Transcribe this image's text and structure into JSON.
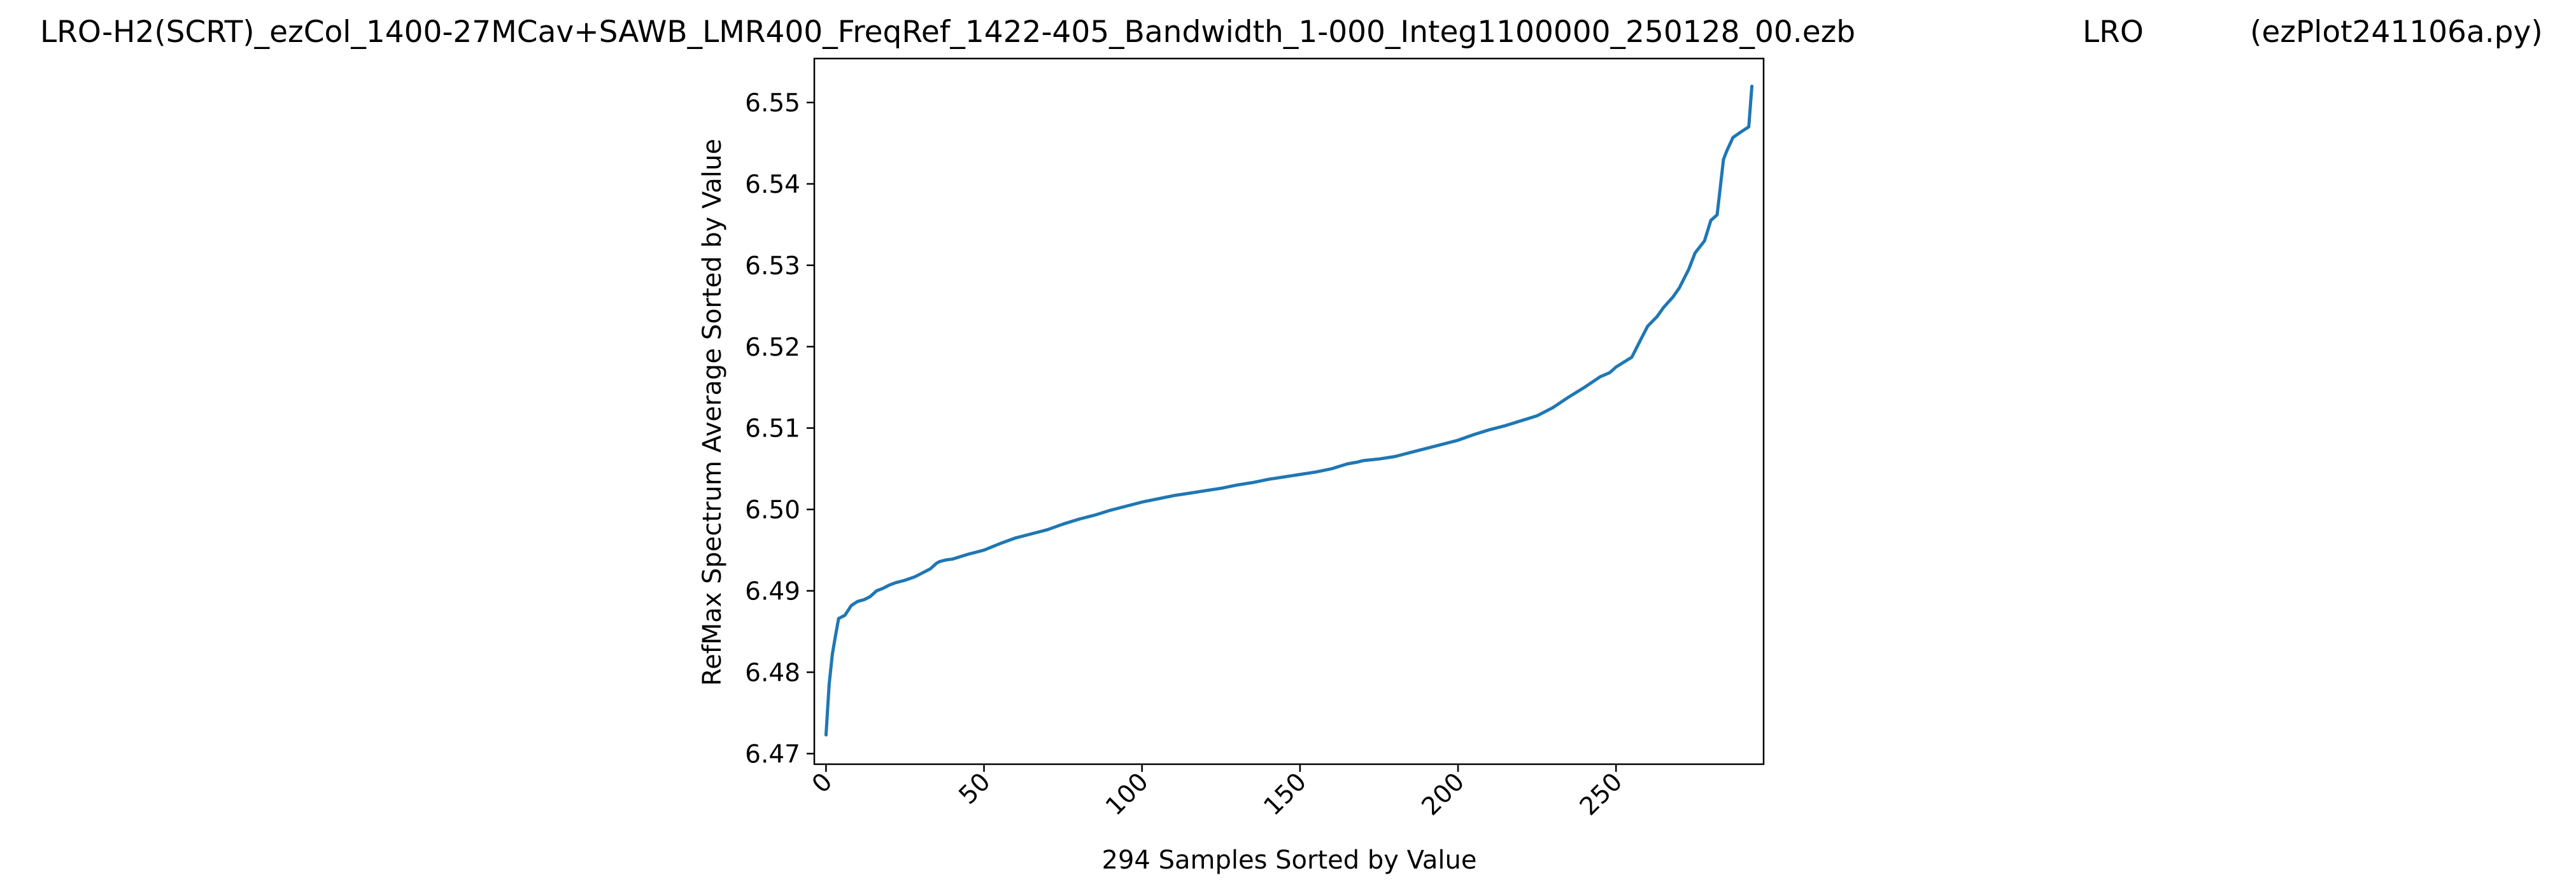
{
  "header": {
    "filename": "LRO-H2(SCRT)_ezCol_1400-27MCav+SAWB_LMR400_FreqRef_1422-405_Bandwidth_1-000_Integ1100000_250128_00.ezb",
    "site": "LRO",
    "program": "(ezPlot241106a.py)"
  },
  "colors": {
    "line": "#1f77b4",
    "axes": "#000000",
    "background": "#ffffff"
  },
  "chart_data": {
    "type": "line",
    "title": "",
    "xlabel": "294 Samples Sorted by Value",
    "ylabel": "RefMax Spectrum Average Sorted by Value",
    "xlim": [
      -3.7,
      296.7
    ],
    "ylim": [
      6.4687,
      6.5554
    ],
    "x_ticks": [
      0,
      50,
      100,
      150,
      200,
      250
    ],
    "x_tick_labels": [
      "0",
      "50",
      "100",
      "150",
      "200",
      "250"
    ],
    "x_tick_rotation": 45,
    "y_ticks": [
      6.47,
      6.48,
      6.49,
      6.5,
      6.51,
      6.52,
      6.53,
      6.54,
      6.55
    ],
    "y_tick_labels": [
      "6.47",
      "6.48",
      "6.49",
      "6.50",
      "6.51",
      "6.52",
      "6.53",
      "6.54",
      "6.55"
    ],
    "grid": false,
    "series": [
      {
        "x": [
          0,
          1,
          2,
          3,
          4,
          5,
          6,
          8,
          10,
          12,
          14,
          16,
          18,
          20,
          22,
          25,
          28,
          30,
          33,
          35,
          36,
          38,
          40,
          45,
          50,
          55,
          60,
          65,
          70,
          75,
          80,
          85,
          90,
          95,
          100,
          105,
          110,
          115,
          120,
          125,
          130,
          135,
          140,
          145,
          150,
          155,
          160,
          165,
          168,
          170,
          175,
          180,
          185,
          190,
          195,
          200,
          205,
          210,
          215,
          220,
          225,
          230,
          235,
          240,
          245,
          248,
          250,
          255,
          258,
          260,
          263,
          265,
          268,
          270,
          273,
          275,
          278,
          280,
          282,
          284,
          285,
          287,
          290,
          292,
          293
        ],
        "y": [
          6.4723,
          6.4785,
          6.4822,
          6.4845,
          6.4866,
          6.4868,
          6.487,
          6.4882,
          6.4887,
          6.4889,
          6.4893,
          6.49,
          6.4903,
          6.4907,
          6.491,
          6.4913,
          6.4917,
          6.4921,
          6.4927,
          6.4934,
          6.4936,
          6.4938,
          6.4939,
          6.4945,
          6.495,
          6.4958,
          6.4965,
          6.497,
          6.4975,
          6.4982,
          6.4988,
          6.4993,
          6.4999,
          6.5004,
          6.5009,
          6.5013,
          6.5017,
          6.502,
          6.5023,
          6.5026,
          6.503,
          6.5033,
          6.5037,
          6.504,
          6.5043,
          6.5046,
          6.505,
          6.5056,
          6.5058,
          6.506,
          6.5062,
          6.5065,
          6.507,
          6.5075,
          6.508,
          6.5085,
          6.5092,
          6.5098,
          6.5103,
          6.5109,
          6.5115,
          6.5125,
          6.5138,
          6.515,
          6.5163,
          6.5168,
          6.5175,
          6.5187,
          6.521,
          6.5225,
          6.5237,
          6.5248,
          6.5261,
          6.5272,
          6.5295,
          6.5315,
          6.533,
          6.5355,
          6.5362,
          6.543,
          6.544,
          6.5457,
          6.5465,
          6.547,
          6.552
        ]
      }
    ]
  }
}
